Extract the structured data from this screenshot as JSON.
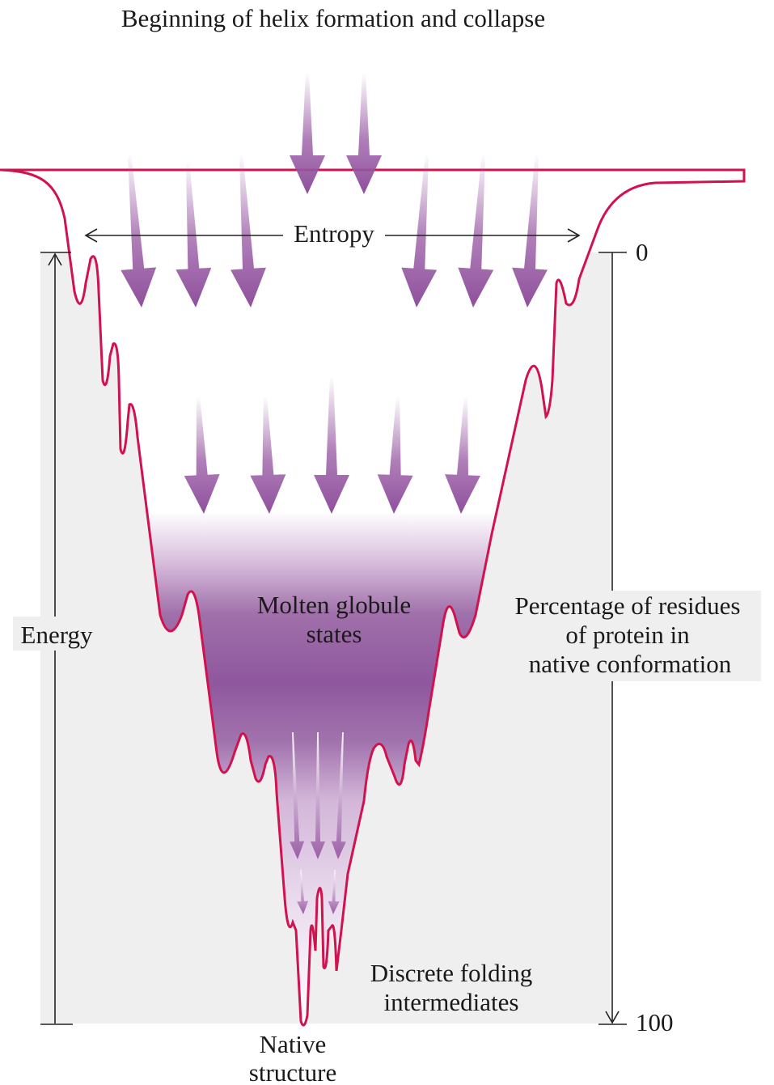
{
  "title": "Beginning of helix formation and collapse",
  "entropy_label": "Entropy",
  "energy_label": "Energy",
  "scale": {
    "top": 0,
    "bottom": 100,
    "label": [
      "Percentage of residues",
      "of protein in",
      "native conformation"
    ]
  },
  "molten_globule_label": [
    "Molten globule",
    "states"
  ],
  "intermediates_label": [
    "Discrete folding",
    "intermediates"
  ],
  "native_label": [
    "Native",
    "structure"
  ]
}
